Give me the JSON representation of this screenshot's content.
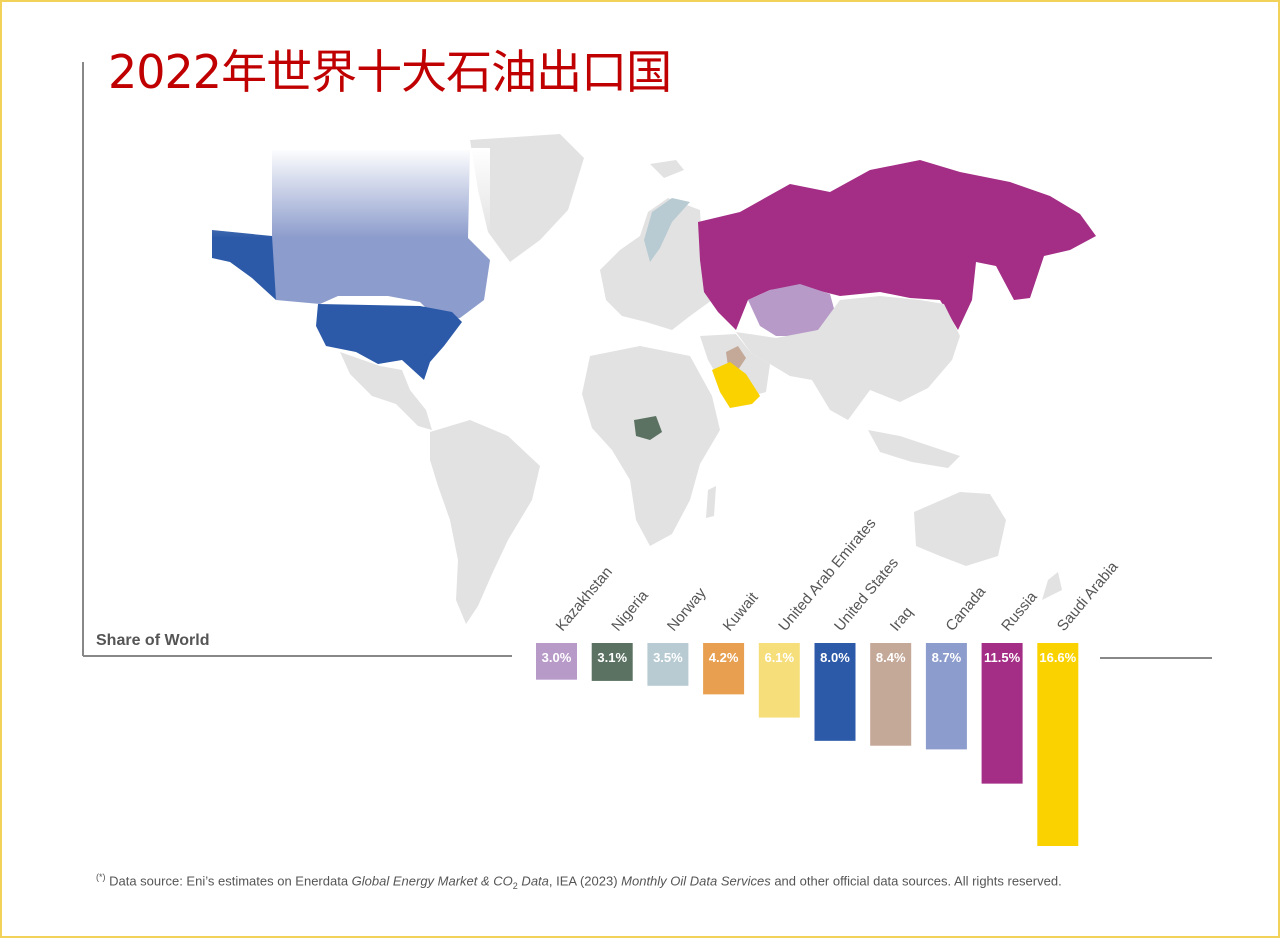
{
  "title": "2022年世界十大石油出口国",
  "chart_data": {
    "type": "bar",
    "title": "2022年世界十大石油出口国",
    "subtitle": "Share of World",
    "categories": [
      "Kazakhstan",
      "Nigeria",
      "Norway",
      "Kuwait",
      "United Arab Emirates",
      "United States",
      "Iraq",
      "Canada",
      "Russia",
      "Saudi Arabia"
    ],
    "values": [
      3.0,
      3.1,
      3.5,
      4.2,
      6.1,
      8.0,
      8.4,
      8.7,
      11.5,
      16.6
    ],
    "value_labels": [
      "3.0%",
      "3.1%",
      "3.5%",
      "4.2%",
      "6.1%",
      "8.0%",
      "8.4%",
      "8.7%",
      "11.5%",
      "16.6%"
    ],
    "colors": [
      "#b89ac9",
      "#5b7262",
      "#b8cbd3",
      "#e8a050",
      "#f6df7a",
      "#2c5aa8",
      "#c4a898",
      "#8c9ccc",
      "#a42d85",
      "#f9d200"
    ],
    "ylim": [
      0,
      16.6
    ],
    "unit": "%"
  },
  "footnote": {
    "mark": "(*)",
    "text1": " Data source: Eni’s estimates on Enerdata ",
    "italic1": "Global Energy Market & CO",
    "sub": "2",
    "italic2": " Data",
    "text2": ", IEA (2023) ",
    "italic3": "Monthly Oil Data Services",
    "text3": " and other official data sources. All rights reserved."
  }
}
